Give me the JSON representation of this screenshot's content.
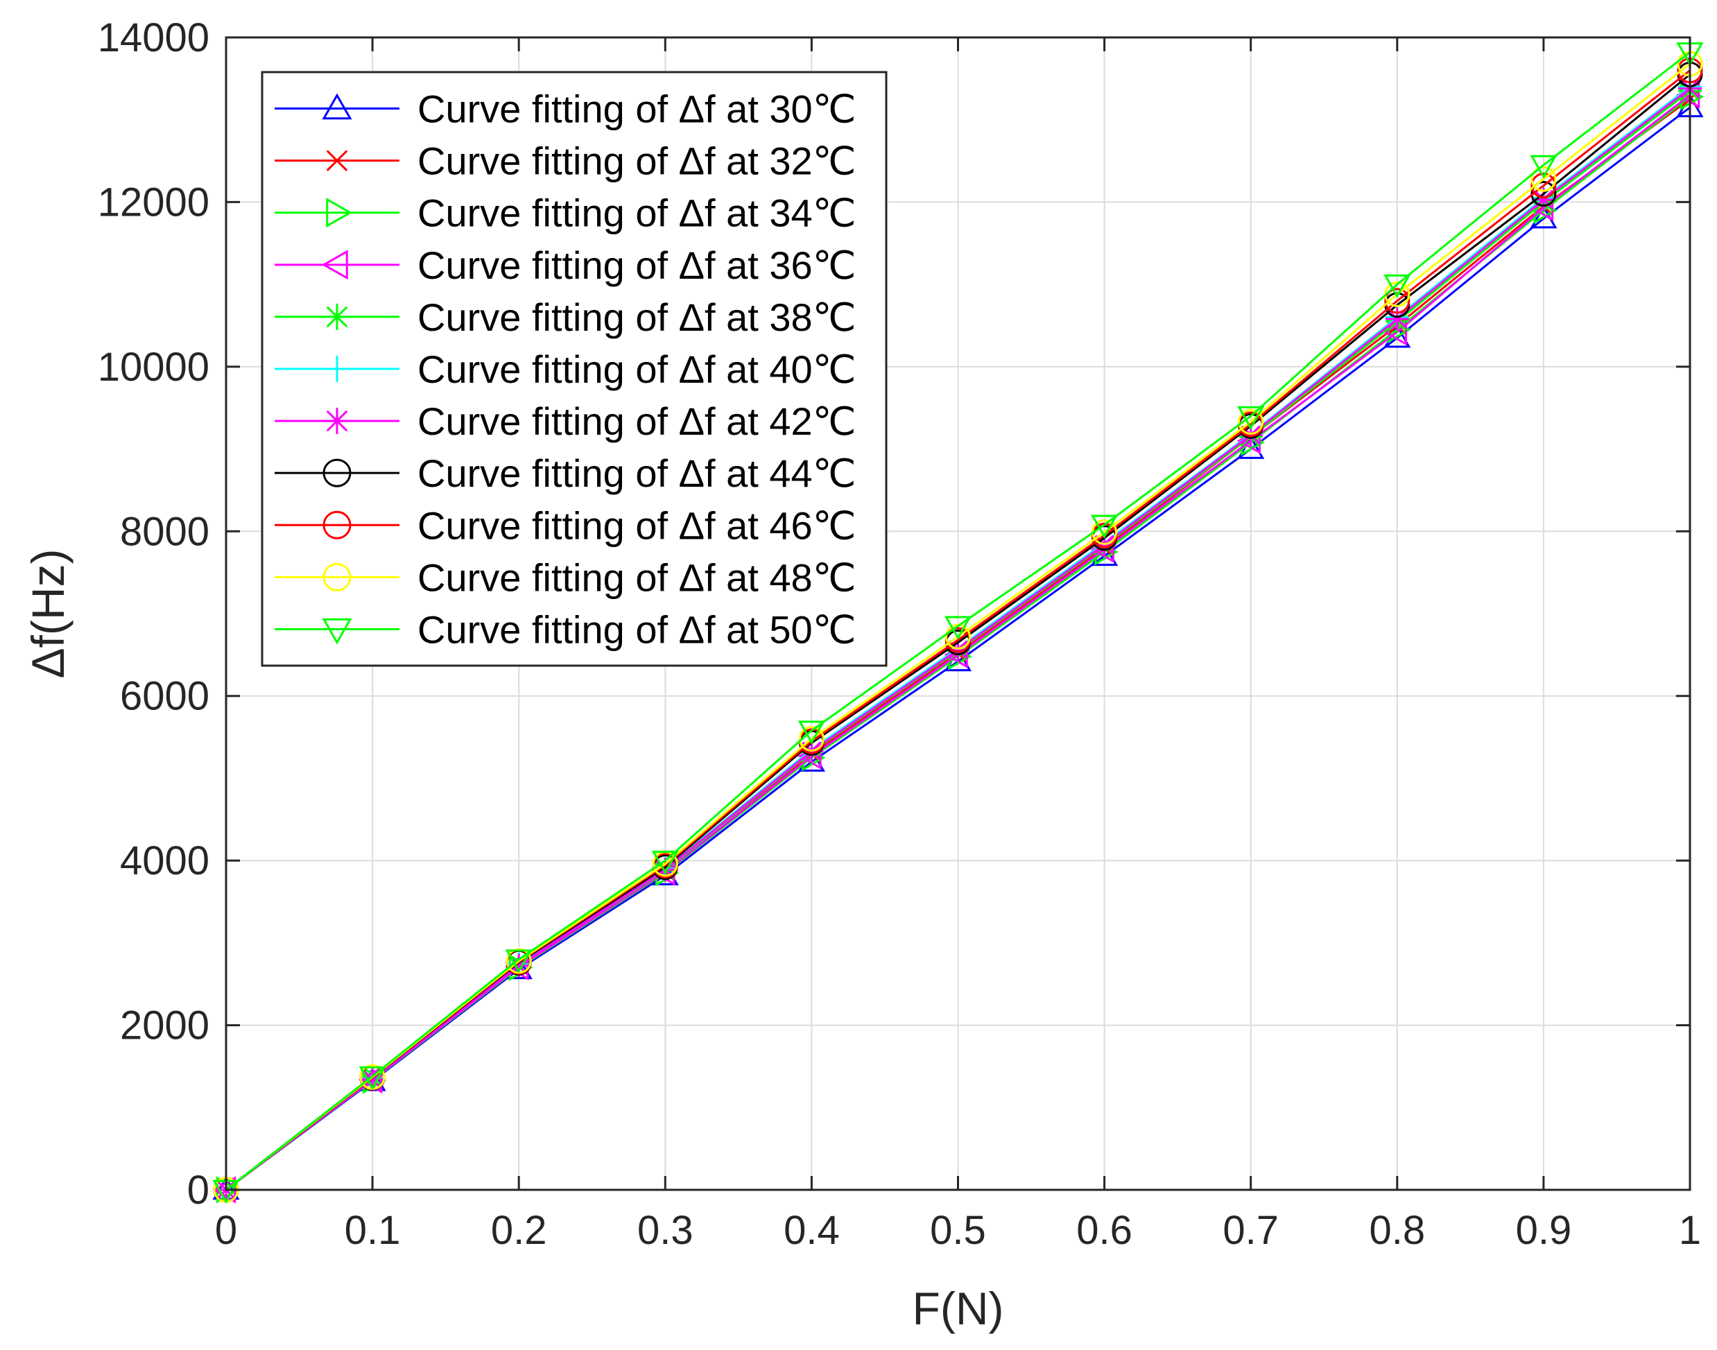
{
  "chart_data": {
    "type": "line",
    "xlabel": "F(N)",
    "ylabel": "Δf(Hz)",
    "xlim": [
      0,
      1
    ],
    "ylim": [
      0,
      14000
    ],
    "x_ticks": [
      "0",
      "0.1",
      "0.2",
      "0.3",
      "0.4",
      "0.5",
      "0.6",
      "0.7",
      "0.8",
      "0.9",
      "1"
    ],
    "y_ticks": [
      "0",
      "2000",
      "4000",
      "6000",
      "8000",
      "10000",
      "12000",
      "14000"
    ],
    "grid": true,
    "legend_position": "top-left",
    "x": [
      0,
      0.1,
      0.2,
      0.3,
      0.4,
      0.5,
      0.6,
      0.7,
      0.8,
      0.9,
      1
    ],
    "series": [
      {
        "name": "Curve fitting of Δf at 30℃",
        "color": "#0000ff",
        "marker": "triangle-up",
        "values": [
          0,
          1320,
          2680,
          3820,
          5200,
          6420,
          7700,
          9000,
          10350,
          11800,
          13150
        ]
      },
      {
        "name": "Curve fitting of Δf at 32℃",
        "color": "#ff0000",
        "marker": "x",
        "values": [
          0,
          1340,
          2720,
          3870,
          5300,
          6520,
          7800,
          9150,
          10500,
          11950,
          13250
        ]
      },
      {
        "name": "Curve fitting of Δf at 34℃",
        "color": "#00ff00",
        "marker": "triangle-right",
        "values": [
          0,
          1330,
          2700,
          3850,
          5250,
          6480,
          7750,
          9080,
          10450,
          11900,
          13280
        ]
      },
      {
        "name": "Curve fitting of Δf at 36℃",
        "color": "#ff00ff",
        "marker": "triangle-left",
        "values": [
          0,
          1335,
          2710,
          3860,
          5270,
          6500,
          7780,
          9100,
          10420,
          11930,
          13300
        ]
      },
      {
        "name": "Curve fitting of Δf at 38℃",
        "color": "#00ff00",
        "marker": "asterisk",
        "values": [
          0,
          1345,
          2730,
          3880,
          5320,
          6550,
          7830,
          9150,
          10550,
          12000,
          13350
        ]
      },
      {
        "name": "Curve fitting of Δf at 40℃",
        "color": "#00ffff",
        "marker": "plus",
        "values": [
          0,
          1350,
          2740,
          3900,
          5350,
          6580,
          7860,
          9180,
          10600,
          12050,
          13400
        ]
      },
      {
        "name": "Curve fitting of Δf at 42℃",
        "color": "#ff00ff",
        "marker": "asterisk",
        "values": [
          0,
          1340,
          2725,
          3890,
          5330,
          6560,
          7840,
          9170,
          10580,
          12030,
          13380
        ]
      },
      {
        "name": "Curve fitting of Δf at 44℃",
        "color": "#000000",
        "marker": "circle",
        "values": [
          0,
          1360,
          2760,
          3920,
          5430,
          6650,
          7920,
          9280,
          10750,
          12100,
          13550
        ]
      },
      {
        "name": "Curve fitting of Δf at 46℃",
        "color": "#ff0000",
        "marker": "circle",
        "values": [
          0,
          1365,
          2770,
          3940,
          5450,
          6680,
          7950,
          9300,
          10800,
          12200,
          13600
        ]
      },
      {
        "name": "Curve fitting of Δf at 48℃",
        "color": "#ffff00",
        "marker": "circle",
        "values": [
          0,
          1370,
          2780,
          3960,
          5480,
          6720,
          7990,
          9330,
          10880,
          12280,
          13680
        ]
      },
      {
        "name": "Curve fitting of Δf at 50℃",
        "color": "#00ff00",
        "marker": "triangle-down",
        "values": [
          0,
          1380,
          2800,
          4000,
          5580,
          6850,
          8080,
          9400,
          11000,
          12450,
          13820
        ]
      }
    ]
  }
}
